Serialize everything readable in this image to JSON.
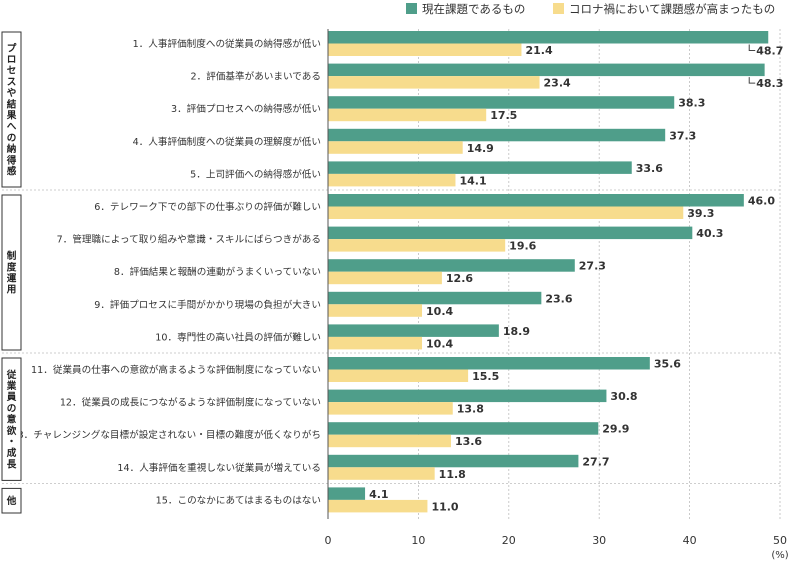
{
  "chart_data": {
    "type": "bar",
    "orientation": "horizontal",
    "xlim": [
      0,
      50
    ],
    "x_ticks": [
      "0",
      "10",
      "20",
      "30",
      "40",
      "50"
    ],
    "unit": "(%)",
    "grid": true,
    "legend_position": "top-right",
    "series": [
      {
        "name": "現在課題であるもの",
        "color": "#4f9e8a"
      },
      {
        "name": "コロナ禍において課題感が高まったもの",
        "color": "#f7dc8d"
      }
    ],
    "groups": [
      {
        "label": "プロセスや結果への納得感",
        "items": [
          {
            "label": "1．人事評価制度への従業員の納得感が低い",
            "current": 48.7,
            "covid": 21.4
          },
          {
            "label": "2．評価基準があいまいである",
            "current": 48.3,
            "covid": 23.4
          },
          {
            "label": "3．評価プロセスへの納得感が低い",
            "current": 38.3,
            "covid": 17.5
          },
          {
            "label": "4．人事評価制度への従業員の理解度が低い",
            "current": 37.3,
            "covid": 14.9
          },
          {
            "label": "5．上司評価への納得感が低い",
            "current": 33.6,
            "covid": 14.1
          }
        ]
      },
      {
        "label": "制度運用",
        "items": [
          {
            "label": "6．テレワーク下での部下の仕事ぶりの評価が難しい",
            "current": 46.0,
            "covid": 39.3
          },
          {
            "label": "7．管理職によって取り組みや意識・スキルにばらつきがある",
            "current": 40.3,
            "covid": 19.6
          },
          {
            "label": "8．評価結果と報酬の連動がうまくいっていない",
            "current": 27.3,
            "covid": 12.6
          },
          {
            "label": "9．評価プロセスに手間がかかり現場の負担が大きい",
            "current": 23.6,
            "covid": 10.4
          },
          {
            "label": "10．専門性の高い社員の評価が難しい",
            "current": 18.9,
            "covid": 10.4
          }
        ]
      },
      {
        "label": "従業員の意欲・成長",
        "items": [
          {
            "label": "11．従業員の仕事への意欲が高まるような評価制度になっていない",
            "current": 35.6,
            "covid": 15.5
          },
          {
            "label": "12．従業員の成長につながるような評価制度になっていない",
            "current": 30.8,
            "covid": 13.8
          },
          {
            "label": "13．チャレンジングな目標が設定されない・目標の難度が低くなりがち",
            "current": 29.9,
            "covid": 13.6
          },
          {
            "label": "14．人事評価を重視しない従業員が増えている",
            "current": 27.7,
            "covid": 11.8
          }
        ]
      },
      {
        "label": "他",
        "items": [
          {
            "label": "15．このなかにあてはまるものはない",
            "current": 4.1,
            "covid": 11.0
          }
        ]
      }
    ]
  }
}
